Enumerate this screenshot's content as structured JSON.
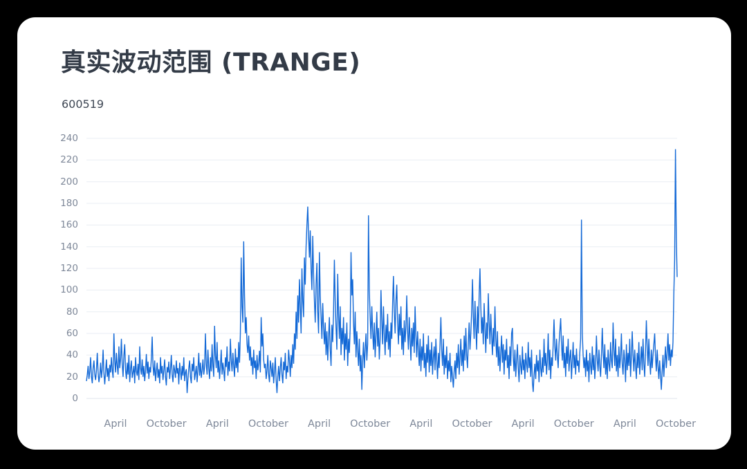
{
  "chart_data": {
    "type": "line",
    "title": "真实波动范围 (TRANGE)",
    "subtitle": "600519",
    "series_name": "TRANGE",
    "line_color": "#1268d6",
    "grid_color": "#e9edf4",
    "axis_line_color": "#e0e5ec",
    "tick_label_color": "#7d8798",
    "legend_position": "none",
    "grid": "horizontal-only",
    "ylim": [
      0,
      240
    ],
    "y_ticks": [
      0,
      20,
      40,
      60,
      80,
      100,
      120,
      140,
      160,
      180,
      200,
      220,
      240
    ],
    "x_ticks": [
      "April",
      "October",
      "April",
      "October",
      "April",
      "October",
      "April",
      "October",
      "April",
      "October",
      "April",
      "October"
    ],
    "values": [
      16,
      22,
      30,
      18,
      25,
      38,
      20,
      14,
      28,
      35,
      22,
      17,
      26,
      42,
      24,
      15,
      21,
      33,
      19,
      27,
      45,
      23,
      13,
      25,
      36,
      20,
      28,
      16,
      31,
      24,
      38,
      26,
      19,
      60,
      35,
      24,
      42,
      30,
      22,
      48,
      28,
      36,
      55,
      32,
      20,
      40,
      50,
      26,
      18,
      33,
      22,
      40,
      15,
      27,
      35,
      19,
      24,
      30,
      14,
      38,
      25,
      21,
      32,
      17,
      48,
      28,
      22,
      36,
      20,
      30,
      16,
      26,
      41,
      23,
      34,
      18,
      29,
      24,
      37,
      57,
      30,
      21,
      35,
      16,
      25,
      33,
      19,
      27,
      14,
      38,
      23,
      30,
      17,
      26,
      36,
      20,
      12,
      29,
      24,
      34,
      18,
      27,
      40,
      22,
      15,
      31,
      26,
      19,
      35,
      23,
      28,
      13,
      33,
      25,
      17,
      30,
      21,
      38,
      16,
      24,
      27,
      5,
      18,
      28,
      35,
      20,
      14,
      32,
      25,
      38,
      17,
      23,
      30,
      15,
      27,
      42,
      21,
      33,
      19,
      26,
      36,
      22,
      29,
      60,
      32,
      22,
      45,
      28,
      18,
      38,
      25,
      50,
      30,
      20,
      67,
      40,
      28,
      52,
      24,
      35,
      18,
      30,
      45,
      22,
      33,
      26,
      16,
      38,
      29,
      48,
      21,
      34,
      25,
      55,
      35,
      25,
      42,
      30,
      20,
      46,
      28,
      38,
      24,
      52,
      33,
      60,
      130,
      85,
      70,
      145,
      95,
      60,
      75,
      50,
      42,
      58,
      35,
      48,
      30,
      38,
      22,
      45,
      28,
      35,
      18,
      40,
      26,
      32,
      44,
      24,
      75,
      48,
      60,
      36,
      28,
      32,
      18,
      26,
      40,
      22,
      15,
      35,
      28,
      20,
      33,
      14,
      25,
      38,
      17,
      5,
      20,
      30,
      16,
      28,
      38,
      22,
      14,
      34,
      26,
      42,
      18,
      30,
      24,
      45,
      35,
      20,
      40,
      28,
      50,
      32,
      60,
      45,
      80,
      55,
      95,
      70,
      110,
      85,
      60,
      120,
      90,
      75,
      130,
      105,
      140,
      160,
      177,
      150,
      130,
      155,
      120,
      100,
      150,
      115,
      90,
      70,
      105,
      125,
      80,
      60,
      135,
      95,
      75,
      55,
      88,
      65,
      50,
      70,
      40,
      62,
      35,
      55,
      75,
      45,
      30,
      68,
      52,
      80,
      128,
      90,
      65,
      45,
      115,
      78,
      55,
      85,
      40,
      65,
      50,
      75,
      35,
      60,
      45,
      70,
      30,
      55,
      42,
      65,
      135,
      95,
      110,
      70,
      50,
      80,
      38,
      62,
      45,
      30,
      55,
      25,
      40,
      8,
      35,
      52,
      28,
      45,
      60,
      35,
      50,
      169,
      100,
      75,
      55,
      85,
      62,
      45,
      70,
      38,
      58,
      80,
      48,
      65,
      36,
      55,
      100,
      72,
      50,
      85,
      60,
      40,
      68,
      52,
      78,
      45,
      62,
      38,
      70,
      55,
      88,
      113,
      80,
      60,
      90,
      105,
      70,
      50,
      78,
      58,
      85,
      45,
      65,
      40,
      72,
      52,
      66,
      95,
      62,
      45,
      75,
      55,
      35,
      65,
      48,
      70,
      42,
      85,
      58,
      38,
      62,
      45,
      30,
      55,
      25,
      48,
      35,
      60,
      28,
      42,
      20,
      50,
      33,
      58,
      24,
      45,
      30,
      52,
      22,
      38,
      48,
      26,
      55,
      35,
      18,
      42,
      28,
      50,
      75,
      45,
      30,
      55,
      22,
      40,
      28,
      48,
      18,
      35,
      25,
      42,
      15,
      30,
      20,
      10,
      25,
      35,
      18,
      42,
      28,
      50,
      22,
      38,
      55,
      30,
      45,
      25,
      58,
      35,
      65,
      40,
      28,
      52,
      70,
      45,
      60,
      80,
      110,
      75,
      55,
      90,
      65,
      45,
      85,
      60,
      95,
      120,
      85,
      60,
      75,
      50,
      88,
      65,
      42,
      70,
      55,
      97,
      70,
      50,
      78,
      58,
      40,
      65,
      48,
      85,
      55,
      38,
      62,
      30,
      48,
      25,
      42,
      58,
      33,
      50,
      22,
      45,
      35,
      55,
      28,
      40,
      18,
      48,
      30,
      60,
      65,
      38,
      25,
      45,
      20,
      35,
      50,
      28,
      15,
      40,
      30,
      22,
      48,
      26,
      36,
      18,
      42,
      32,
      24,
      52,
      28,
      38,
      20,
      45,
      15,
      6,
      22,
      32,
      18,
      40,
      25,
      35,
      15,
      45,
      28,
      20,
      38,
      24,
      55,
      30,
      42,
      22,
      35,
      60,
      26,
      45,
      18,
      38,
      30,
      50,
      73,
      48,
      35,
      55,
      40,
      28,
      50,
      62,
      74,
      50,
      35,
      58,
      28,
      42,
      20,
      48,
      32,
      55,
      25,
      38,
      45,
      18,
      35,
      52,
      28,
      40,
      22,
      46,
      30,
      35,
      24,
      42,
      55,
      165,
      60,
      40,
      28,
      38,
      20,
      45,
      25,
      35,
      15,
      42,
      30,
      22,
      48,
      26,
      40,
      18,
      32,
      58,
      35,
      25,
      45,
      30,
      20,
      40,
      65,
      42,
      28,
      50,
      22,
      38,
      18,
      45,
      32,
      25,
      52,
      35,
      28,
      70,
      45,
      30,
      55,
      25,
      40,
      20,
      48,
      28,
      38,
      60,
      32,
      22,
      45,
      35,
      15,
      50,
      26,
      42,
      30,
      55,
      20,
      38,
      62,
      40,
      25,
      45,
      30,
      18,
      42,
      28,
      52,
      22,
      35,
      48,
      26,
      55,
      32,
      20,
      44,
      72,
      48,
      30,
      55,
      35,
      22,
      45,
      28,
      40,
      50,
      60,
      38,
      25,
      45,
      30,
      18,
      35,
      22,
      8,
      25,
      40,
      20,
      35,
      48,
      28,
      42,
      60,
      35,
      50,
      30,
      45,
      38,
      52,
      96,
      128,
      230,
      148,
      112
    ]
  }
}
